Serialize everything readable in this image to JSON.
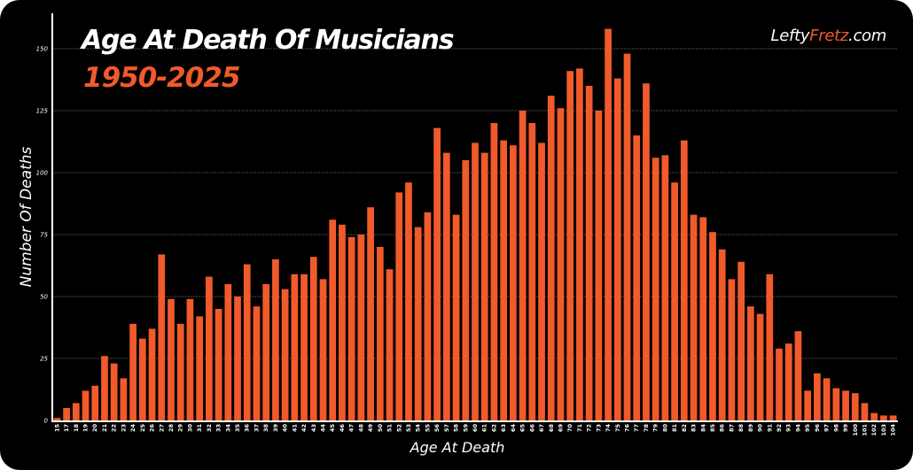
{
  "header": {
    "title": "Age At Death Of Musicians",
    "subtitle": "1950-2025",
    "brand_part1": "Lefty",
    "brand_part2": "Fretz",
    "brand_part3": ".com"
  },
  "colors": {
    "background": "#000000",
    "bar": "#f15a2b",
    "accent": "#f15a2b",
    "text": "#ffffff",
    "grid": "#4a4a4a"
  },
  "chart_data": {
    "type": "bar",
    "title": "Age At Death Of Musicians",
    "subtitle": "1950-2025",
    "xlabel": "Age At Death",
    "ylabel": "Number Of Deaths",
    "ylim": [
      0,
      160
    ],
    "yticks": [
      0,
      25,
      50,
      75,
      100,
      125,
      150
    ],
    "grid": true,
    "legend": null,
    "categories": [
      "15",
      "17",
      "18",
      "19",
      "20",
      "21",
      "22",
      "23",
      "24",
      "25",
      "26",
      "27",
      "28",
      "29",
      "30",
      "31",
      "32",
      "33",
      "34",
      "35",
      "36",
      "37",
      "38",
      "39",
      "40",
      "41",
      "42",
      "43",
      "44",
      "45",
      "46",
      "47",
      "48",
      "49",
      "50",
      "51",
      "52",
      "53",
      "54",
      "55",
      "56",
      "57",
      "58",
      "59",
      "60",
      "61",
      "62",
      "63",
      "64",
      "65",
      "66",
      "67",
      "68",
      "69",
      "70",
      "71",
      "72",
      "73",
      "74",
      "75",
      "76",
      "77",
      "78",
      "79",
      "80",
      "81",
      "82",
      "83",
      "84",
      "85",
      "86",
      "87",
      "88",
      "89",
      "90",
      "91",
      "92",
      "93",
      "94",
      "95",
      "96",
      "97",
      "98",
      "99",
      "100",
      "101",
      "102",
      "103",
      "104"
    ],
    "values": [
      1,
      5,
      7,
      12,
      14,
      26,
      23,
      17,
      39,
      33,
      37,
      67,
      49,
      39,
      49,
      42,
      58,
      45,
      55,
      50,
      63,
      46,
      55,
      65,
      53,
      59,
      59,
      66,
      57,
      81,
      79,
      74,
      75,
      86,
      70,
      61,
      92,
      96,
      78,
      84,
      118,
      108,
      83,
      105,
      112,
      108,
      120,
      113,
      111,
      125,
      120,
      112,
      131,
      126,
      141,
      142,
      135,
      125,
      158,
      138,
      148,
      115,
      136,
      106,
      107,
      96,
      113,
      83,
      82,
      76,
      69,
      57,
      64,
      46,
      43,
      59,
      29,
      31,
      36,
      12,
      19,
      17,
      13,
      12,
      11,
      7,
      3,
      2,
      2
    ]
  }
}
